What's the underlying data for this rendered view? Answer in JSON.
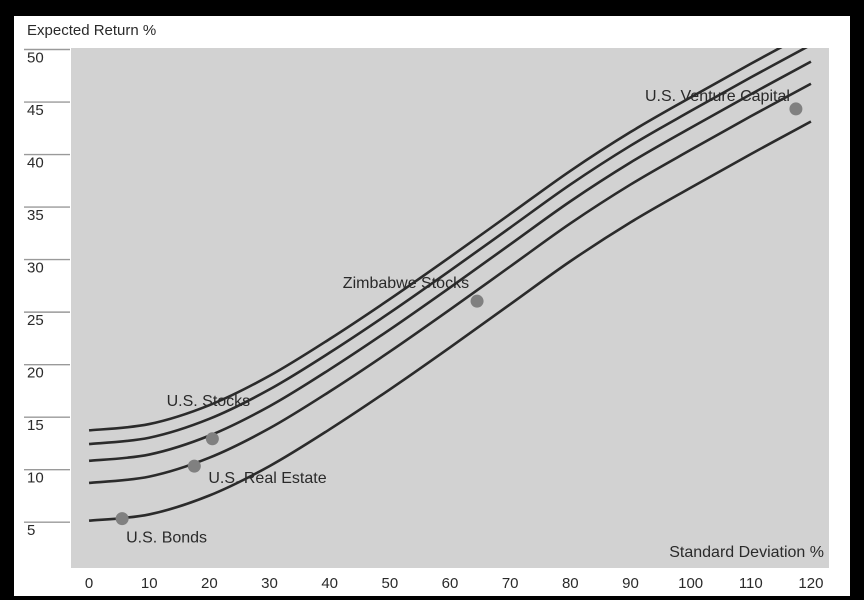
{
  "chart_data": {
    "type": "line",
    "title": "",
    "xlabel": "Standard Deviation %",
    "ylabel": "Expected Return %",
    "xlim": [
      -3,
      123
    ],
    "ylim": [
      1.5,
      51
    ],
    "xticks": [
      "0",
      "10",
      "20",
      "30",
      "40",
      "50",
      "60",
      "70",
      "80",
      "90",
      "100",
      "110",
      "120"
    ],
    "yticks": [
      "5",
      "10",
      "15",
      "20",
      "25",
      "30",
      "35",
      "40",
      "45",
      "50"
    ],
    "grid": false,
    "colors": {
      "plot_background": "#d2d2d2",
      "curve": "#2b2b2b",
      "marker": "#808080",
      "tick_line": "#9a9a9a"
    },
    "series": [
      {
        "x": [
          0,
          10,
          20,
          30,
          40,
          50,
          60,
          70,
          80,
          90,
          100,
          110,
          120
        ],
        "y": [
          14.6,
          15.2,
          17.0,
          19.8,
          23.3,
          27.1,
          31.1,
          35.2,
          39.3,
          43.0,
          46.3,
          49.5,
          52.6
        ]
      },
      {
        "x": [
          0,
          10,
          20,
          30,
          40,
          50,
          60,
          70,
          80,
          90,
          100,
          110,
          120
        ],
        "y": [
          13.3,
          13.9,
          15.7,
          18.5,
          22.0,
          25.8,
          29.8,
          33.9,
          38.0,
          41.7,
          45.0,
          48.2,
          51.3
        ]
      },
      {
        "x": [
          0,
          10,
          20,
          30,
          40,
          50,
          60,
          70,
          80,
          90,
          100,
          110,
          120
        ],
        "y": [
          11.7,
          12.3,
          14.1,
          16.9,
          20.4,
          24.2,
          28.2,
          32.3,
          36.4,
          40.1,
          43.4,
          46.6,
          49.7
        ]
      },
      {
        "x": [
          0,
          10,
          20,
          30,
          40,
          50,
          60,
          70,
          80,
          90,
          100,
          110,
          120
        ],
        "y": [
          9.6,
          10.2,
          12.0,
          14.8,
          18.3,
          22.1,
          26.1,
          30.2,
          34.3,
          38.0,
          41.3,
          44.5,
          47.6
        ]
      },
      {
        "x": [
          0,
          10,
          20,
          30,
          40,
          50,
          60,
          70,
          80,
          90,
          100,
          110,
          120
        ],
        "y": [
          6.0,
          6.6,
          8.4,
          11.2,
          14.7,
          18.5,
          22.5,
          26.6,
          30.7,
          34.4,
          37.7,
          40.9,
          44.0
        ]
      }
    ],
    "points": [
      {
        "name": "U.S. Bonds",
        "x": 5.5,
        "y": 6.2
      },
      {
        "name": "U.S. Real Estate",
        "x": 17.5,
        "y": 11.2
      },
      {
        "name": "U.S. Stocks",
        "x": 20.5,
        "y": 13.8
      },
      {
        "name": "Zimbabwe Stocks",
        "x": 64.5,
        "y": 26.9
      },
      {
        "name": "U.S. Venture Capital",
        "x": 117.5,
        "y": 45.2
      }
    ]
  }
}
